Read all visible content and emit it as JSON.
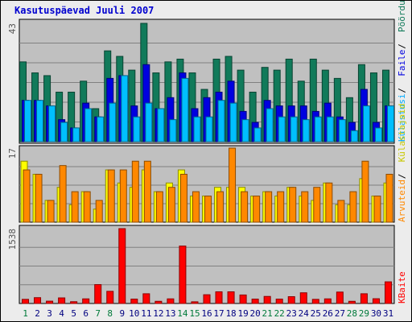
{
  "chart_data": {
    "type": "bar",
    "title": "Kasutuspäevad Juuli 2007",
    "categories": [
      "1",
      "2",
      "3",
      "4",
      "5",
      "6",
      "7",
      "8",
      "9",
      "10",
      "11",
      "12",
      "13",
      "14",
      "15",
      "16",
      "17",
      "18",
      "19",
      "20",
      "21",
      "22",
      "23",
      "24",
      "25",
      "26",
      "27",
      "28",
      "29",
      "30",
      "31"
    ],
    "weekend_days": [
      "1",
      "7",
      "8",
      "14",
      "15",
      "21",
      "22",
      "28",
      "29"
    ],
    "panels": [
      {
        "name": "top",
        "ymax_label": "43",
        "ymax": 43,
        "series": [
          {
            "name": "Pöördumisi",
            "color": "#117a5a",
            "values": [
              29,
              25,
              24,
              18,
              18,
              22,
              12,
              33,
              31,
              26,
              43,
              25,
              29,
              30,
              25,
              19,
              30,
              31,
              26,
              18,
              27,
              26,
              30,
              22,
              30,
              26,
              23,
              16,
              28,
              25,
              26
            ]
          },
          {
            "name": "Faile",
            "color": "#0000e0",
            "values": [
              15,
              15,
              13,
              8,
              5,
              14,
              9,
              23,
              24,
              13,
              28,
              12,
              16,
              25,
              12,
              16,
              18,
              22,
              11,
              7,
              15,
              13,
              13,
              13,
              11,
              14,
              9,
              7,
              19,
              7,
              13
            ]
          },
          {
            "name": "Külastusi",
            "color": "#00bfff",
            "values": [
              15,
              15,
              13,
              7,
              5,
              12,
              9,
              14,
              24,
              9,
              14,
              12,
              8,
              23,
              9,
              9,
              15,
              14,
              8,
              5,
              12,
              9,
              9,
              8,
              9,
              9,
              8,
              4,
              13,
              5,
              13
            ]
          }
        ]
      },
      {
        "name": "middle",
        "ymax_label": "17",
        "ymax": 17,
        "series": [
          {
            "name": "Külastajaid",
            "color": "#ffff00",
            "values": [
              14,
              11,
              5,
              8,
              4,
              7,
              3,
              12,
              9,
              8,
              12,
              7,
              9,
              12,
              6,
              6,
              8,
              8,
              8,
              6,
              7,
              6,
              8,
              6,
              5,
              9,
              4,
              4,
              10,
              6,
              9
            ]
          },
          {
            "name": "Arvuteid",
            "color": "#ff8800",
            "values": [
              12,
              11,
              5,
              13,
              7,
              7,
              5,
              12,
              12,
              14,
              14,
              7,
              8,
              11,
              7,
              6,
              7,
              17,
              7,
              6,
              7,
              7,
              8,
              7,
              8,
              9,
              5,
              7,
              14,
              6,
              11
            ]
          }
        ]
      },
      {
        "name": "bottom",
        "ymax_label": "1538",
        "ymax": 1538,
        "series": [
          {
            "name": "KBaite",
            "color": "#ff0000",
            "values": [
              85,
              120,
              48,
              115,
              37,
              95,
              388,
              250,
              1538,
              90,
              200,
              45,
              95,
              1180,
              35,
              180,
              240,
              240,
              175,
              90,
              145,
              90,
              140,
              220,
              85,
              95,
              235,
              45,
              200,
              98,
              445
            ]
          }
        ]
      }
    ]
  }
}
